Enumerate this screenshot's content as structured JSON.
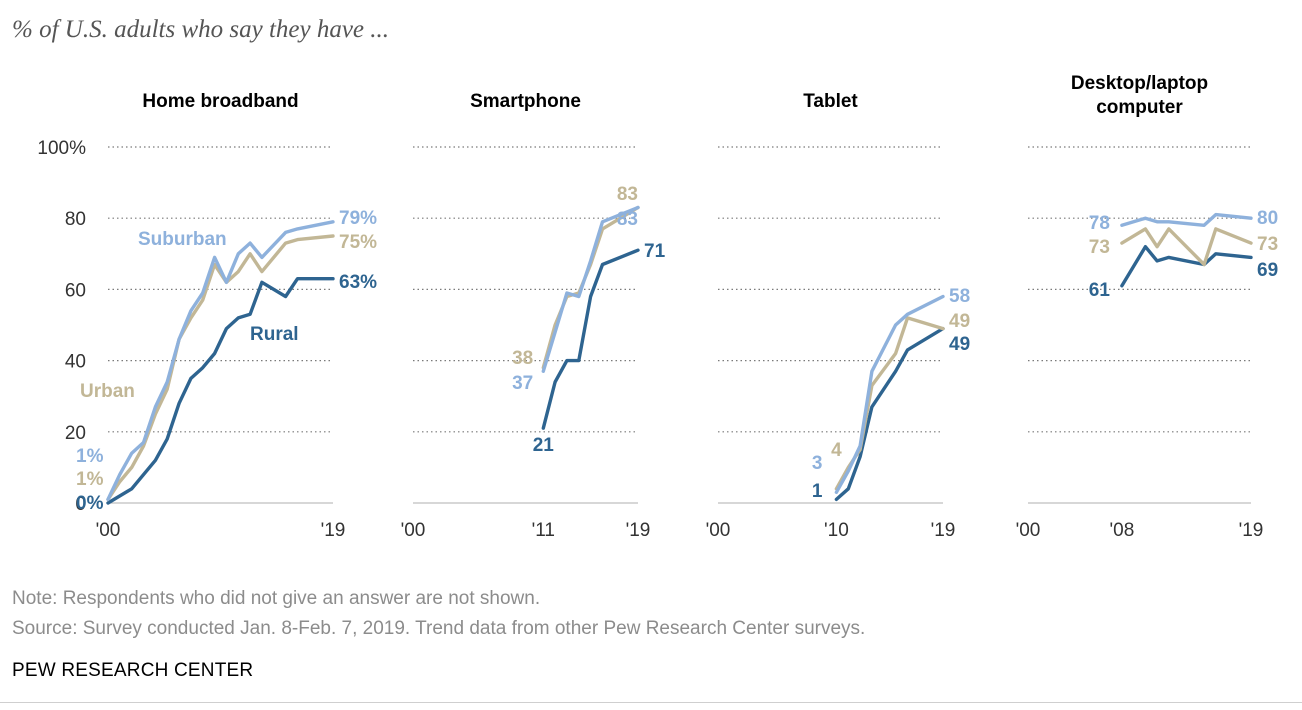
{
  "subtitle": "% of U.S. adults who say they have ...",
  "note": "Note: Respondents who did not give an answer are not shown.",
  "source": "Source: Survey conducted Jan. 8-Feb. 7, 2019.  Trend data from other Pew Research Center surveys.",
  "brand": "PEW RESEARCH CENTER",
  "colors": {
    "suburban": "#8eb1dc",
    "urban": "#c2b796",
    "rural": "#2e6490"
  },
  "chart_data": {
    "type": "line",
    "ylim": [
      0,
      100
    ],
    "yticks": [
      0,
      20,
      40,
      60,
      80,
      100
    ],
    "ytick_labels": [
      "0",
      "20",
      "40",
      "60",
      "80",
      "100%"
    ],
    "grid": true,
    "legend": "inline labels on first panel",
    "panels": [
      {
        "title": "Home broadband",
        "xlim": [
          2000,
          2019
        ],
        "xtick_labels": [
          "'00",
          "'19"
        ],
        "series": [
          {
            "name": "Suburban",
            "color": "#8eb1dc",
            "x": [
              2000,
              2001,
              2002,
              2003,
              2004,
              2005,
              2006,
              2007,
              2008,
              2009,
              2010,
              2011,
              2012,
              2013,
              2015,
              2016,
              2019
            ],
            "y": [
              1,
              8,
              14,
              17,
              27,
              34,
              46,
              54,
              59,
              69,
              62,
              70,
              73,
              69,
              76,
              77,
              79
            ],
            "start_label": "1%",
            "end_label": "79%"
          },
          {
            "name": "Urban",
            "color": "#c2b796",
            "x": [
              2000,
              2001,
              2002,
              2003,
              2004,
              2005,
              2006,
              2007,
              2008,
              2009,
              2010,
              2011,
              2012,
              2013,
              2015,
              2016,
              2019
            ],
            "y": [
              1,
              6,
              10,
              16,
              25,
              32,
              46,
              52,
              57,
              67,
              62,
              65,
              70,
              65,
              73,
              74,
              75
            ],
            "start_label": "1%",
            "end_label": "75%"
          },
          {
            "name": "Rural",
            "color": "#2e6490",
            "x": [
              2000,
              2002,
              2004,
              2005,
              2006,
              2007,
              2008,
              2009,
              2010,
              2011,
              2012,
              2013,
              2015,
              2016,
              2019
            ],
            "y": [
              0,
              4,
              12,
              18,
              28,
              35,
              38,
              42,
              49,
              52,
              53,
              62,
              58,
              63,
              63
            ],
            "start_label": "0%",
            "end_label": "63%"
          }
        ]
      },
      {
        "title": "Smartphone",
        "xlim": [
          2000,
          2019
        ],
        "xtick_labels": [
          "'00",
          "'11",
          "'19"
        ],
        "series": [
          {
            "name": "Suburban",
            "color": "#8eb1dc",
            "x": [
              2011,
              2012,
              2013,
              2014,
              2015,
              2016,
              2019
            ],
            "y": [
              37,
              48,
              59,
              58,
              68,
              79,
              83
            ],
            "start_label": "37",
            "end_label": "83"
          },
          {
            "name": "Urban",
            "color": "#c2b796",
            "x": [
              2011,
              2012,
              2013,
              2014,
              2015,
              2016,
              2019
            ],
            "y": [
              38,
              50,
              58,
              59,
              67,
              77,
              83
            ],
            "start_label": "38",
            "end_label": "83"
          },
          {
            "name": "Rural",
            "color": "#2e6490",
            "x": [
              2011,
              2012,
              2013,
              2014,
              2015,
              2016,
              2019
            ],
            "y": [
              21,
              34,
              40,
              40,
              58,
              67,
              71
            ],
            "start_label": "21",
            "end_label": "71"
          }
        ]
      },
      {
        "title": "Tablet",
        "xlim": [
          2000,
          2019
        ],
        "xtick_labels": [
          "'00",
          "'10",
          "'19"
        ],
        "series": [
          {
            "name": "Suburban",
            "color": "#8eb1dc",
            "x": [
              2010,
              2011,
              2012,
              2013,
              2015,
              2016,
              2019
            ],
            "y": [
              3,
              9,
              16,
              37,
              50,
              53,
              58
            ],
            "start_label": "3",
            "end_label": "58"
          },
          {
            "name": "Urban",
            "color": "#c2b796",
            "x": [
              2010,
              2011,
              2012,
              2013,
              2015,
              2016,
              2019
            ],
            "y": [
              4,
              10,
              15,
              33,
              42,
              52,
              49
            ],
            "start_label": "4",
            "end_label": "49"
          },
          {
            "name": "Rural",
            "color": "#2e6490",
            "x": [
              2010,
              2011,
              2012,
              2013,
              2015,
              2016,
              2019
            ],
            "y": [
              1,
              4,
              13,
              27,
              37,
              43,
              49
            ],
            "start_label": "1",
            "end_label": "49"
          }
        ]
      },
      {
        "title": "Desktop/laptop computer",
        "title_lines": [
          "Desktop/laptop",
          "computer"
        ],
        "xlim": [
          2000,
          2019
        ],
        "xtick_labels": [
          "'00",
          "'08",
          "'19"
        ],
        "series": [
          {
            "name": "Suburban",
            "color": "#8eb1dc",
            "x": [
              2008,
              2010,
              2011,
              2012,
              2015,
              2016,
              2019
            ],
            "y": [
              78,
              80,
              79,
              79,
              78,
              81,
              80
            ],
            "start_label": "78",
            "end_label": "80"
          },
          {
            "name": "Urban",
            "color": "#c2b796",
            "x": [
              2008,
              2010,
              2011,
              2012,
              2015,
              2016,
              2019
            ],
            "y": [
              73,
              77,
              72,
              77,
              67,
              77,
              73
            ],
            "start_label": "73",
            "end_label": "73"
          },
          {
            "name": "Rural",
            "color": "#2e6490",
            "x": [
              2008,
              2010,
              2011,
              2012,
              2015,
              2016,
              2019
            ],
            "y": [
              61,
              72,
              68,
              69,
              67,
              70,
              69
            ],
            "start_label": "61",
            "end_label": "69"
          }
        ]
      }
    ]
  }
}
